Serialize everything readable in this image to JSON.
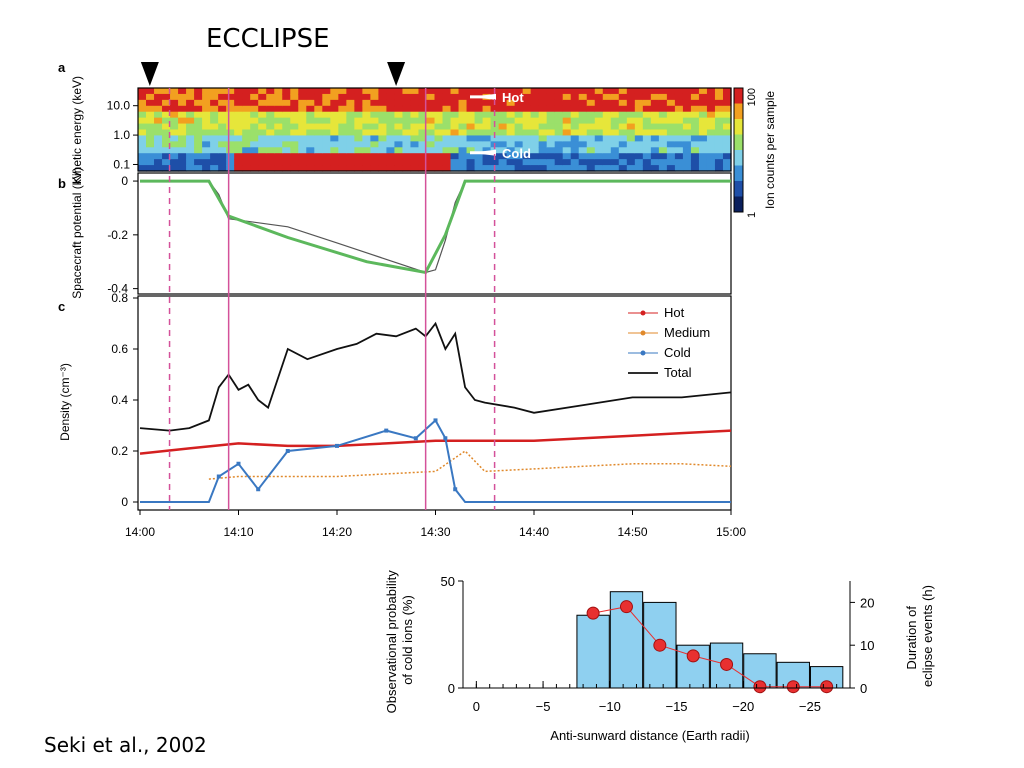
{
  "slide": {
    "title": "ECCLIPSE",
    "citation": "Seki et al., 2002"
  },
  "colors": {
    "hot": "#d42020",
    "medium": "#e0892b",
    "cold": "#3a78c2",
    "total": "#111111",
    "fit": "#5cb85c",
    "marker_line": "#d4519a",
    "bar_fill": "#8fd0f0",
    "duration_marker": "#e83030"
  },
  "chart_data": [
    {
      "type": "heatmap",
      "panel": "a",
      "ylabel": "Kinetic energy (keV)",
      "ytick_labels": [
        "10.0",
        "1.0",
        "0.1"
      ],
      "ylim": [
        0.06,
        40
      ],
      "yscale": "log",
      "colorbar": {
        "label": "Ion counts per sample",
        "min_label": "1",
        "max_label": "100",
        "scale": "log"
      },
      "annotations": [
        "Hot",
        "Cold"
      ],
      "hot_band_keV": 20,
      "cold_band_keV": 0.25,
      "cold_band_time_range": [
        "14:09",
        "14:31"
      ],
      "eclipse_arrows_time": [
        "14:01",
        "14:26"
      ]
    },
    {
      "type": "line",
      "panel": "b",
      "ylabel": "Spacecraft potential (kV)",
      "ytick_labels": [
        "0",
        "-0.2",
        "-0.4"
      ],
      "ylim": [
        -0.42,
        0.03
      ],
      "series": [
        {
          "x": [
            "14:00",
            "14:07",
            "14:08",
            "14:09",
            "14:15",
            "14:20",
            "14:29",
            "14:30",
            "14:31",
            "14:32",
            "14:33",
            "15:00"
          ],
          "y": [
            0,
            0,
            -0.05,
            -0.14,
            -0.17,
            -0.23,
            -0.34,
            -0.33,
            -0.22,
            -0.08,
            0,
            0
          ]
        },
        {
          "x": [
            "14:00",
            "14:07",
            "14:09",
            "14:15",
            "14:23",
            "14:29",
            "14:31",
            "14:33",
            "15:00"
          ],
          "y": [
            0,
            0,
            -0.13,
            -0.21,
            -0.3,
            -0.34,
            -0.2,
            0,
            0
          ]
        }
      ]
    },
    {
      "type": "line",
      "panel": "c",
      "ylabel": "Density (cm⁻³)",
      "xlabel": "",
      "x_tick_labels": [
        "14:00",
        "14:10",
        "14:20",
        "14:30",
        "14:40",
        "14:50",
        "15:00"
      ],
      "ytick_labels": [
        "0",
        "0.2",
        "0.4",
        "0.6",
        "0.8"
      ],
      "ylim": [
        0,
        0.8
      ],
      "legend_position": "top-right",
      "series": [
        {
          "name": "Hot",
          "x": [
            "14:00",
            "14:05",
            "14:10",
            "14:15",
            "14:20",
            "14:25",
            "14:30",
            "14:35",
            "14:40",
            "14:45",
            "14:50",
            "14:55",
            "15:00"
          ],
          "y": [
            0.19,
            0.21,
            0.23,
            0.22,
            0.22,
            0.23,
            0.24,
            0.24,
            0.24,
            0.25,
            0.26,
            0.27,
            0.28
          ]
        },
        {
          "name": "Medium",
          "x": [
            "14:07",
            "14:10",
            "14:15",
            "14:20",
            "14:25",
            "14:30",
            "14:33",
            "14:35",
            "14:40",
            "14:45",
            "14:50",
            "14:55",
            "15:00"
          ],
          "y": [
            0.09,
            0.1,
            0.1,
            0.1,
            0.11,
            0.12,
            0.2,
            0.12,
            0.13,
            0.14,
            0.15,
            0.15,
            0.14
          ]
        },
        {
          "name": "Cold",
          "x": [
            "14:00",
            "14:07",
            "14:08",
            "14:10",
            "14:12",
            "14:15",
            "14:20",
            "14:25",
            "14:28",
            "14:30",
            "14:31",
            "14:32",
            "14:33",
            "14:34",
            "15:00"
          ],
          "y": [
            0,
            0,
            0.1,
            0.15,
            0.05,
            0.2,
            0.22,
            0.28,
            0.25,
            0.32,
            0.25,
            0.05,
            0,
            0,
            0
          ]
        },
        {
          "name": "Total",
          "x": [
            "14:00",
            "14:03",
            "14:05",
            "14:07",
            "14:08",
            "14:09",
            "14:10",
            "14:11",
            "14:12",
            "14:13",
            "14:15",
            "14:17",
            "14:20",
            "14:22",
            "14:24",
            "14:26",
            "14:28",
            "14:29",
            "14:30",
            "14:31",
            "14:32",
            "14:33",
            "14:34",
            "14:35",
            "14:38",
            "14:40",
            "14:45",
            "14:50",
            "14:55",
            "15:00"
          ],
          "y": [
            0.29,
            0.28,
            0.29,
            0.32,
            0.45,
            0.5,
            0.44,
            0.46,
            0.4,
            0.37,
            0.6,
            0.56,
            0.6,
            0.62,
            0.66,
            0.65,
            0.68,
            0.65,
            0.7,
            0.6,
            0.66,
            0.45,
            0.4,
            0.39,
            0.37,
            0.35,
            0.38,
            0.41,
            0.41,
            0.43
          ]
        }
      ],
      "vertical_markers": [
        {
          "x": "14:03",
          "style": "dashed"
        },
        {
          "x": "14:09",
          "style": "solid"
        },
        {
          "x": "14:29",
          "style": "solid"
        },
        {
          "x": "14:36",
          "style": "dashed"
        }
      ]
    },
    {
      "type": "bar",
      "xlabel": "Anti-sunward distance (Earth radii)",
      "ylabel": "Observational probability of cold ions (%)",
      "ylabel_right": "Duration of eclipse events (h)",
      "x_tick_labels": [
        "0",
        "−5",
        "−10",
        "−15",
        "−20",
        "−25"
      ],
      "x_tick_values": [
        0,
        -5,
        -10,
        -15,
        -20,
        -25
      ],
      "xlim": [
        1,
        -28
      ],
      "ylim": [
        0,
        50
      ],
      "ytick_labels": [
        "0",
        "50"
      ],
      "ylim_right": [
        0,
        25
      ],
      "ytick_labels_right": [
        "0",
        "10",
        "20"
      ],
      "bins": [
        [
          -7.5,
          -10
        ],
        [
          -10,
          -12.5
        ],
        [
          -12.5,
          -15
        ],
        [
          -15,
          -17.5
        ],
        [
          -17.5,
          -20
        ],
        [
          -20,
          -22.5
        ],
        [
          -22.5,
          -25
        ],
        [
          -25,
          -27.5
        ]
      ],
      "values": [
        34,
        45,
        40,
        20,
        21,
        16,
        12,
        10
      ],
      "series": [
        {
          "x": [
            -8.75,
            -11.25,
            -13.75,
            -16.25,
            -18.75,
            -21.25,
            -23.75,
            -26.25
          ],
          "values": [
            17.5,
            19,
            10,
            7.5,
            5.5,
            0.3,
            0.3,
            0.3
          ]
        }
      ]
    }
  ]
}
